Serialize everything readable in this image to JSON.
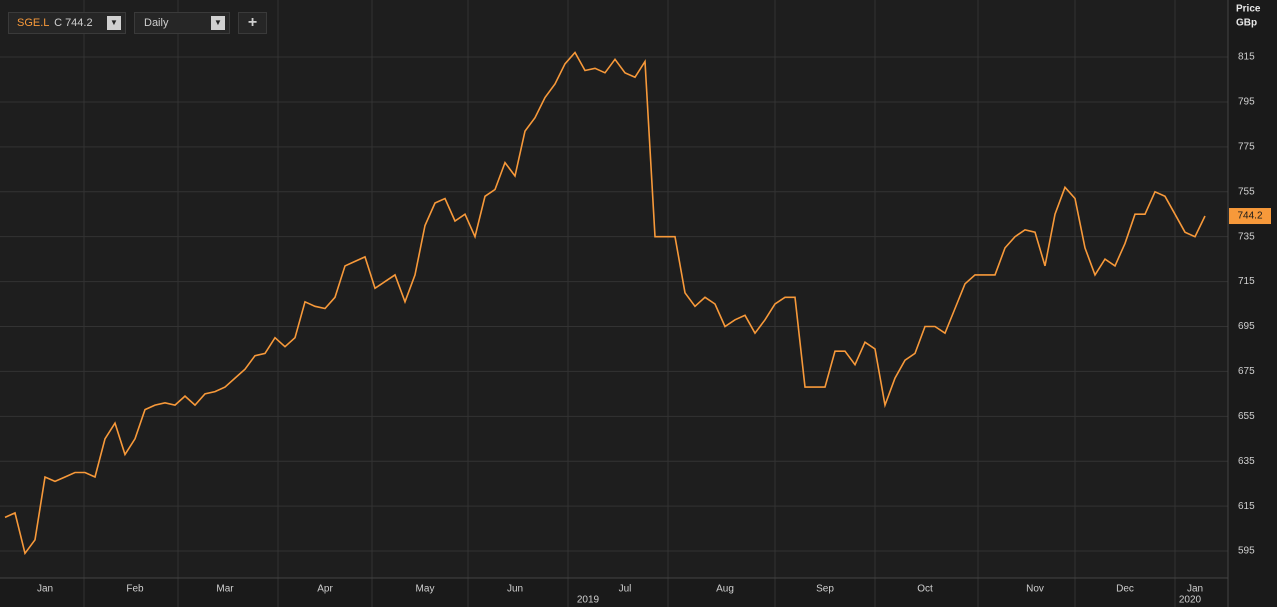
{
  "chart_data": {
    "type": "line",
    "symbol": "SGE.L",
    "close_label": "C 744.2",
    "interval": "Daily",
    "add_button": "+",
    "axis_title": "Price",
    "axis_unit": "GBp",
    "last_price_label": "744.2",
    "year_labels": [
      "2019",
      "2020"
    ],
    "color": "#f7993a",
    "grid": true,
    "ylim": [
      583,
      840.4
    ],
    "yticks": [
      595,
      615,
      635,
      655,
      675,
      695,
      715,
      735,
      755,
      775,
      795,
      815
    ],
    "categories": [
      null,
      null,
      null,
      null,
      "Jan",
      null,
      null,
      null,
      null,
      null,
      null,
      null,
      null,
      "Feb",
      null,
      null,
      null,
      null,
      null,
      null,
      null,
      null,
      "Mar",
      null,
      null,
      null,
      null,
      null,
      null,
      null,
      null,
      null,
      "Apr",
      null,
      null,
      null,
      null,
      null,
      null,
      null,
      null,
      null,
      "May",
      null,
      null,
      null,
      null,
      null,
      null,
      null,
      null,
      "Jun",
      null,
      null,
      null,
      null,
      null,
      null,
      null,
      null,
      null,
      null,
      "Jul",
      null,
      null,
      null,
      null,
      null,
      null,
      null,
      null,
      null,
      "Aug",
      null,
      null,
      null,
      null,
      null,
      null,
      null,
      null,
      null,
      "Sep",
      null,
      null,
      null,
      null,
      null,
      null,
      null,
      null,
      null,
      "Oct",
      null,
      null,
      null,
      null,
      null,
      null,
      null,
      null,
      null,
      null,
      "Nov",
      null,
      null,
      null,
      null,
      null,
      null,
      null,
      null,
      "Dec",
      null,
      null,
      null,
      null,
      null,
      null,
      "Jan",
      null
    ],
    "values": [
      610,
      612,
      594,
      600,
      628,
      626,
      628,
      630,
      630,
      628,
      645,
      652,
      638,
      645,
      658,
      660,
      661,
      660,
      664,
      660,
      665,
      666,
      668,
      672,
      676,
      682,
      683,
      690,
      686,
      690,
      706,
      704,
      703,
      708,
      722,
      724,
      726,
      712,
      715,
      718,
      706,
      718,
      740,
      750,
      752,
      742,
      745,
      735,
      753,
      756,
      768,
      762,
      782,
      788,
      797,
      803,
      812,
      817,
      809,
      810,
      808,
      814,
      808,
      806,
      813,
      735,
      735,
      735,
      710,
      704,
      708,
      705,
      695,
      698,
      700,
      692,
      698,
      705,
      708,
      708,
      668,
      668,
      668,
      684,
      684,
      678,
      688,
      685,
      660,
      672,
      680,
      683,
      695,
      695,
      692,
      703,
      714,
      718,
      718,
      718,
      730,
      735,
      738,
      737,
      722,
      745,
      757,
      752,
      730,
      718,
      725,
      722,
      732,
      745,
      745,
      755,
      753,
      745,
      737,
      735,
      744.2
    ]
  }
}
